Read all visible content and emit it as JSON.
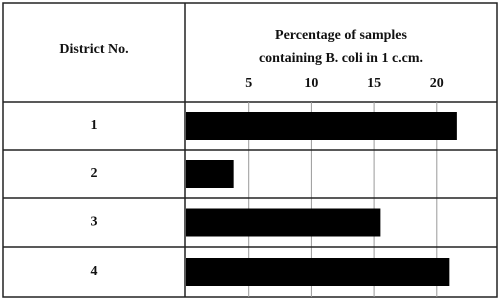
{
  "chart_data": {
    "type": "bar",
    "orientation": "horizontal",
    "category_header": "District No.",
    "xlabel": [
      "Percentage of samples",
      "containing B. coli in 1 c.cm."
    ],
    "categories": [
      "1",
      "2",
      "3",
      "4"
    ],
    "values": [
      21.6,
      3.8,
      15.5,
      21.0
    ],
    "color": "#000000",
    "xlim": [
      0,
      24.8
    ],
    "xticks": [
      5,
      10,
      15,
      20
    ],
    "grid": true
  }
}
